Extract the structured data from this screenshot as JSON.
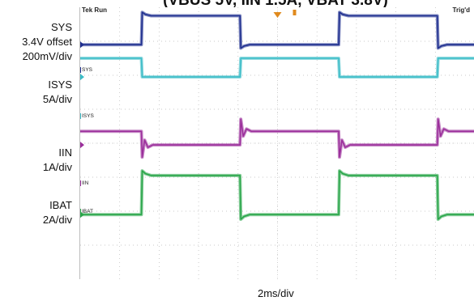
{
  "title": "(VBUS 5V, IIN 1.5A, VBAT 3.8V)",
  "scope_header": {
    "left": "Tek Run",
    "right": "Trig'd"
  },
  "x_scale": "2ms/div",
  "colors": {
    "SYS": "#1f2f8f",
    "ISYS": "#3bbcc7",
    "IIN": "#9b2f9b",
    "IBAT": "#2aa64a",
    "grid": "#b8b8b8",
    "trigger": "#e08a1e"
  },
  "channels": [
    {
      "name": "SYS",
      "tag": "SYS",
      "num": "1",
      "label_lines": [
        "SYS",
        "3.4V offset",
        "200mV/div"
      ]
    },
    {
      "name": "ISYS",
      "tag": "ISYS",
      "num": "2",
      "label_lines": [
        "ISYS",
        "5A/div"
      ]
    },
    {
      "name": "IIN",
      "tag": "IIN",
      "num": "3",
      "label_lines": [
        "IIN",
        "1A/div"
      ]
    },
    {
      "name": "IBAT",
      "tag": "IBAT",
      "num": "4",
      "label_lines": [
        "IBAT",
        "2A/div"
      ]
    }
  ],
  "chart_data": {
    "type": "line",
    "title": "(VBUS 5V, IIN 1.5A, VBAT 3.8V)",
    "xlabel": "2ms/div",
    "x_unit": "div",
    "xlim": [
      0,
      10
    ],
    "ylim": [
      0,
      8
    ],
    "grid": true,
    "x": [
      0,
      2.7,
      2.7,
      2.95,
      5.1,
      5.1,
      5.35,
      7.55,
      7.55,
      7.8,
      10
    ],
    "series": [
      {
        "name": "SYS",
        "level_low": 6.9,
        "level_high": 7.75,
        "edge_shape": "overshoot"
      },
      {
        "name": "ISYS",
        "level_low": 5.95,
        "level_high": 6.5,
        "edge_shape": "step"
      },
      {
        "name": "IIN",
        "level_low": 3.95,
        "level_high": 4.35,
        "edge_shape": "ringing"
      },
      {
        "name": "IBAT",
        "level_low": 1.9,
        "level_high": 3.05,
        "edge_shape": "overshoot"
      }
    ],
    "edges": [
      {
        "time_div": 1.55,
        "direction": "rise_sys_fall_isys"
      },
      {
        "time_div": 4.05,
        "direction": "fall_sys_rise_isys"
      },
      {
        "time_div": 6.55,
        "direction": "rise_sys_fall_isys"
      },
      {
        "time_div": 9.05,
        "direction": "fall_sys_rise_isys"
      }
    ]
  }
}
